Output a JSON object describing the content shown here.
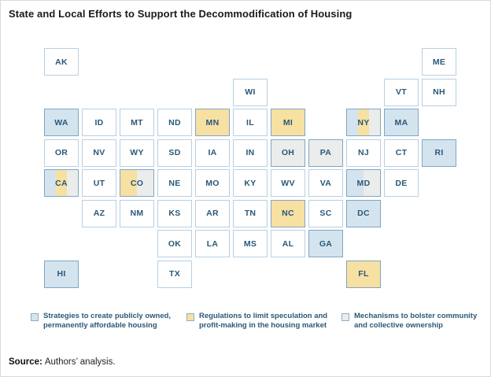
{
  "title": "State and Local Efforts to Support the Decommodification of Housing",
  "source": {
    "label": "Source:",
    "text": "Authors’ analysis."
  },
  "colors": {
    "publicly_owned": "#d4e4ef",
    "speculation": "#f6e0a2",
    "community": "#ebecec",
    "tile_border_plain": "#b9cfe0",
    "tile_border_colored": "#7fa6c4",
    "label_text": "#2a5878"
  },
  "legend": {
    "items": [
      {
        "key": "publicly_owned",
        "label": "Strategies to create publicly owned, permanently affordable housing"
      },
      {
        "key": "speculation",
        "label": "Regulations to limit speculation and profit-making in the housing market"
      },
      {
        "key": "community",
        "label": "Mechanisms to bolster community and collective ownership"
      }
    ]
  },
  "chart_data": {
    "type": "tile_grid_map",
    "title": "State and Local Efforts to Support the Decommodification of Housing",
    "legend_position": "bottom",
    "categories": {
      "publicly_owned": "Strategies to create publicly owned, permanently affordable housing",
      "speculation": "Regulations to limit speculation and profit-making in the housing market",
      "community": "Mechanisms to bolster community and collective ownership"
    },
    "states": [
      {
        "abbr": "AK",
        "row": 1,
        "col": 1,
        "cats": []
      },
      {
        "abbr": "ME",
        "row": 1,
        "col": 11,
        "cats": []
      },
      {
        "abbr": "WI",
        "row": 2,
        "col": 6,
        "cats": []
      },
      {
        "abbr": "VT",
        "row": 2,
        "col": 10,
        "cats": []
      },
      {
        "abbr": "NH",
        "row": 2,
        "col": 11,
        "cats": []
      },
      {
        "abbr": "WA",
        "row": 3,
        "col": 1,
        "cats": [
          "publicly_owned"
        ]
      },
      {
        "abbr": "ID",
        "row": 3,
        "col": 2,
        "cats": []
      },
      {
        "abbr": "MT",
        "row": 3,
        "col": 3,
        "cats": []
      },
      {
        "abbr": "ND",
        "row": 3,
        "col": 4,
        "cats": []
      },
      {
        "abbr": "MN",
        "row": 3,
        "col": 5,
        "cats": [
          "speculation"
        ]
      },
      {
        "abbr": "IL",
        "row": 3,
        "col": 6,
        "cats": []
      },
      {
        "abbr": "MI",
        "row": 3,
        "col": 7,
        "cats": [
          "speculation"
        ]
      },
      {
        "abbr": "NY",
        "row": 3,
        "col": 9,
        "cats": [
          "publicly_owned",
          "speculation",
          "community"
        ]
      },
      {
        "abbr": "MA",
        "row": 3,
        "col": 10,
        "cats": [
          "publicly_owned"
        ]
      },
      {
        "abbr": "OR",
        "row": 4,
        "col": 1,
        "cats": []
      },
      {
        "abbr": "NV",
        "row": 4,
        "col": 2,
        "cats": []
      },
      {
        "abbr": "WY",
        "row": 4,
        "col": 3,
        "cats": []
      },
      {
        "abbr": "SD",
        "row": 4,
        "col": 4,
        "cats": []
      },
      {
        "abbr": "IA",
        "row": 4,
        "col": 5,
        "cats": []
      },
      {
        "abbr": "IN",
        "row": 4,
        "col": 6,
        "cats": []
      },
      {
        "abbr": "OH",
        "row": 4,
        "col": 7,
        "cats": [
          "community"
        ]
      },
      {
        "abbr": "PA",
        "row": 4,
        "col": 8,
        "cats": [
          "community"
        ]
      },
      {
        "abbr": "NJ",
        "row": 4,
        "col": 9,
        "cats": []
      },
      {
        "abbr": "CT",
        "row": 4,
        "col": 10,
        "cats": []
      },
      {
        "abbr": "RI",
        "row": 4,
        "col": 11,
        "cats": [
          "publicly_owned"
        ]
      },
      {
        "abbr": "CA",
        "row": 5,
        "col": 1,
        "cats": [
          "publicly_owned",
          "speculation",
          "community"
        ]
      },
      {
        "abbr": "UT",
        "row": 5,
        "col": 2,
        "cats": []
      },
      {
        "abbr": "CO",
        "row": 5,
        "col": 3,
        "cats": [
          "speculation",
          "community"
        ]
      },
      {
        "abbr": "NE",
        "row": 5,
        "col": 4,
        "cats": []
      },
      {
        "abbr": "MO",
        "row": 5,
        "col": 5,
        "cats": []
      },
      {
        "abbr": "KY",
        "row": 5,
        "col": 6,
        "cats": []
      },
      {
        "abbr": "WV",
        "row": 5,
        "col": 7,
        "cats": []
      },
      {
        "abbr": "VA",
        "row": 5,
        "col": 8,
        "cats": []
      },
      {
        "abbr": "MD",
        "row": 5,
        "col": 9,
        "cats": [
          "publicly_owned",
          "community"
        ]
      },
      {
        "abbr": "DE",
        "row": 5,
        "col": 10,
        "cats": []
      },
      {
        "abbr": "AZ",
        "row": 6,
        "col": 2,
        "cats": []
      },
      {
        "abbr": "NM",
        "row": 6,
        "col": 3,
        "cats": []
      },
      {
        "abbr": "KS",
        "row": 6,
        "col": 4,
        "cats": []
      },
      {
        "abbr": "AR",
        "row": 6,
        "col": 5,
        "cats": []
      },
      {
        "abbr": "TN",
        "row": 6,
        "col": 6,
        "cats": []
      },
      {
        "abbr": "NC",
        "row": 6,
        "col": 7,
        "cats": [
          "speculation"
        ]
      },
      {
        "abbr": "SC",
        "row": 6,
        "col": 8,
        "cats": []
      },
      {
        "abbr": "DC",
        "row": 6,
        "col": 9,
        "cats": [
          "publicly_owned"
        ]
      },
      {
        "abbr": "OK",
        "row": 7,
        "col": 4,
        "cats": []
      },
      {
        "abbr": "LA",
        "row": 7,
        "col": 5,
        "cats": []
      },
      {
        "abbr": "MS",
        "row": 7,
        "col": 6,
        "cats": []
      },
      {
        "abbr": "AL",
        "row": 7,
        "col": 7,
        "cats": []
      },
      {
        "abbr": "GA",
        "row": 7,
        "col": 8,
        "cats": [
          "publicly_owned"
        ]
      },
      {
        "abbr": "HI",
        "row": 8,
        "col": 1,
        "cats": [
          "publicly_owned"
        ]
      },
      {
        "abbr": "TX",
        "row": 8,
        "col": 4,
        "cats": []
      },
      {
        "abbr": "FL",
        "row": 8,
        "col": 9,
        "cats": [
          "speculation"
        ]
      }
    ]
  }
}
